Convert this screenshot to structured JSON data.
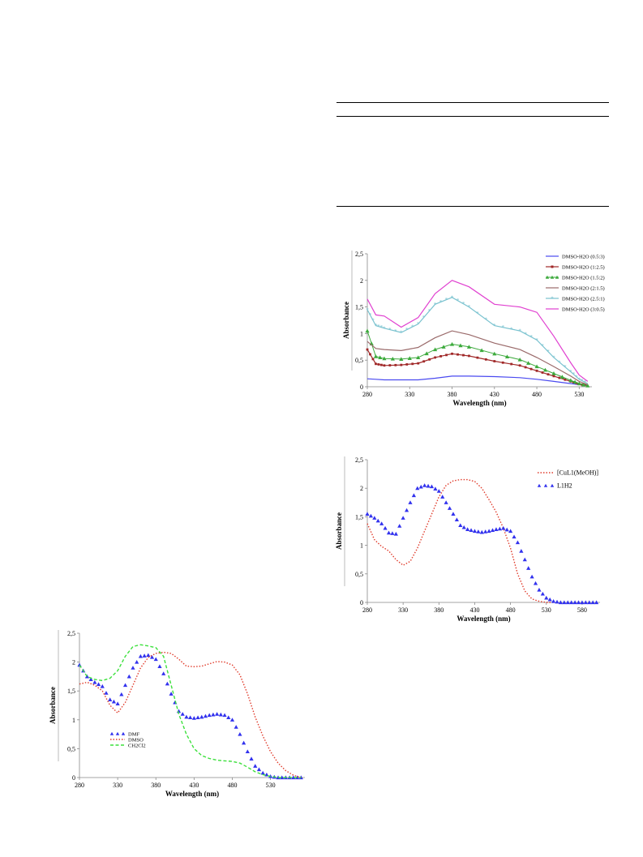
{
  "charts": {
    "top": {
      "type": "line",
      "xlabel": "Wavelength (nm)",
      "ylabel": "Absorbance",
      "x_ticks": [
        "280",
        "330",
        "380",
        "430",
        "480",
        "530"
      ],
      "y_ticks": [
        "0",
        "0,5",
        "1",
        "1,5",
        "2",
        "2,5"
      ],
      "xlim": [
        280,
        545
      ],
      "ylim": [
        0,
        2.5
      ],
      "legend_position": "top-right",
      "series": [
        {
          "name": "DMSO-H2O (0.5:3)",
          "color": "#4a4af0",
          "marker": "none",
          "x": [
            280,
            290,
            300,
            320,
            340,
            360,
            380,
            400,
            430,
            460,
            480,
            500,
            520,
            530,
            540
          ],
          "y": [
            0.15,
            0.14,
            0.13,
            0.13,
            0.13,
            0.16,
            0.2,
            0.2,
            0.19,
            0.17,
            0.14,
            0.1,
            0.06,
            0.04,
            0.03
          ]
        },
        {
          "name": "DMSO-H2O (1:2.5)",
          "color": "#a02828",
          "marker": "square",
          "x": [
            280,
            290,
            300,
            320,
            340,
            360,
            380,
            400,
            430,
            460,
            480,
            500,
            520,
            530,
            540
          ],
          "y": [
            0.7,
            0.43,
            0.4,
            0.41,
            0.44,
            0.55,
            0.62,
            0.58,
            0.48,
            0.4,
            0.3,
            0.2,
            0.1,
            0.05,
            0.02
          ]
        },
        {
          "name": "DMSO-H2O (1.5:2)",
          "color": "#3caa3c",
          "marker": "triangle",
          "x": [
            280,
            290,
            300,
            320,
            340,
            360,
            380,
            400,
            430,
            460,
            480,
            500,
            520,
            530,
            540
          ],
          "y": [
            1.05,
            0.57,
            0.53,
            0.52,
            0.55,
            0.7,
            0.8,
            0.75,
            0.62,
            0.51,
            0.38,
            0.25,
            0.12,
            0.06,
            0.02
          ]
        },
        {
          "name": "DMSO-H2O (2:1.5)",
          "color": "#9a6a6a",
          "marker": "line",
          "x": [
            280,
            290,
            300,
            320,
            340,
            360,
            380,
            400,
            430,
            460,
            480,
            500,
            520,
            530,
            540
          ],
          "y": [
            0.85,
            0.72,
            0.7,
            0.68,
            0.74,
            0.92,
            1.05,
            0.98,
            0.82,
            0.7,
            0.55,
            0.38,
            0.2,
            0.1,
            0.04
          ]
        },
        {
          "name": "DMSO-H2O (2.5:1)",
          "color": "#79c2cf",
          "marker": "star",
          "x": [
            280,
            290,
            300,
            320,
            340,
            360,
            380,
            400,
            430,
            460,
            480,
            500,
            520,
            530,
            540
          ],
          "y": [
            1.45,
            1.15,
            1.1,
            1.02,
            1.18,
            1.55,
            1.68,
            1.5,
            1.15,
            1.05,
            0.88,
            0.55,
            0.28,
            0.14,
            0.06
          ]
        },
        {
          "name": "DMSO-H2O (3:0.5)",
          "color": "#e040d0",
          "marker": "none",
          "x": [
            280,
            290,
            300,
            320,
            340,
            360,
            380,
            400,
            430,
            460,
            480,
            500,
            520,
            530,
            540
          ],
          "y": [
            1.65,
            1.35,
            1.33,
            1.12,
            1.3,
            1.75,
            2.0,
            1.88,
            1.55,
            1.5,
            1.4,
            0.95,
            0.45,
            0.22,
            0.1
          ]
        }
      ]
    },
    "middle": {
      "type": "line",
      "xlabel": "Wavelength  (nm)",
      "ylabel": "Absorbance",
      "x_ticks": [
        "280",
        "330",
        "380",
        "430",
        "480",
        "530",
        "580"
      ],
      "y_ticks": [
        "0",
        "0,5",
        "1",
        "1,5",
        "2",
        "2,5"
      ],
      "xlim": [
        280,
        605
      ],
      "ylim": [
        0,
        2.5
      ],
      "legend_position": "top-right",
      "series": [
        {
          "name": "[CuL1(MeOH)]",
          "color": "#e03c2c",
          "marker": "dotted",
          "x": [
            280,
            290,
            300,
            310,
            320,
            330,
            340,
            350,
            360,
            370,
            380,
            390,
            400,
            410,
            420,
            430,
            440,
            450,
            460,
            470,
            480,
            490,
            500,
            510,
            520,
            530,
            540
          ],
          "y": [
            1.38,
            1.1,
            0.98,
            0.9,
            0.75,
            0.65,
            0.72,
            0.95,
            1.25,
            1.55,
            1.85,
            2.05,
            2.13,
            2.15,
            2.15,
            2.12,
            2.0,
            1.8,
            1.58,
            1.3,
            0.95,
            0.5,
            0.2,
            0.06,
            0.02,
            0.0,
            0.0
          ]
        },
        {
          "name": "L1H2",
          "color": "#3232ee",
          "marker": "triangle",
          "x": [
            280,
            290,
            300,
            310,
            320,
            330,
            340,
            350,
            360,
            370,
            380,
            390,
            400,
            410,
            420,
            430,
            440,
            450,
            460,
            470,
            480,
            490,
            500,
            510,
            520,
            530,
            540,
            550,
            560,
            570,
            580,
            590,
            600
          ],
          "y": [
            1.55,
            1.48,
            1.38,
            1.22,
            1.2,
            1.48,
            1.75,
            2.0,
            2.05,
            2.03,
            1.95,
            1.75,
            1.55,
            1.35,
            1.28,
            1.25,
            1.23,
            1.25,
            1.28,
            1.3,
            1.25,
            1.05,
            0.75,
            0.45,
            0.22,
            0.08,
            0.02,
            0.0,
            0.0,
            0.0,
            0.0,
            0.0,
            0.0
          ]
        }
      ]
    },
    "bottom": {
      "type": "line",
      "xlabel": "Wavelength (nm)",
      "ylabel": "Absorbance",
      "x_ticks": [
        "280",
        "330",
        "380",
        "430",
        "480",
        "530"
      ],
      "y_ticks": [
        "0",
        "0,5",
        "1",
        "1,5",
        "2",
        "2,5"
      ],
      "xlim": [
        280,
        575
      ],
      "ylim": [
        0,
        2.5
      ],
      "legend_position": "bottom-left",
      "series": [
        {
          "name": "DMF",
          "color": "#3232ee",
          "marker": "triangle",
          "x": [
            280,
            290,
            300,
            310,
            320,
            330,
            340,
            350,
            360,
            370,
            380,
            390,
            400,
            410,
            420,
            430,
            440,
            450,
            460,
            470,
            480,
            490,
            500,
            510,
            520,
            530,
            540,
            550,
            560,
            570
          ],
          "y": [
            1.95,
            1.75,
            1.65,
            1.58,
            1.35,
            1.28,
            1.6,
            1.9,
            2.1,
            2.12,
            2.05,
            1.8,
            1.45,
            1.15,
            1.05,
            1.03,
            1.05,
            1.08,
            1.1,
            1.08,
            1.0,
            0.75,
            0.45,
            0.2,
            0.08,
            0.02,
            0.0,
            0.0,
            0.0,
            0.0
          ]
        },
        {
          "name": "DMSO",
          "color": "#e03c2c",
          "marker": "dotted",
          "x": [
            280,
            290,
            300,
            310,
            320,
            330,
            340,
            350,
            360,
            370,
            380,
            390,
            400,
            410,
            420,
            430,
            440,
            450,
            460,
            470,
            480,
            490,
            500,
            510,
            520,
            530,
            540,
            550,
            560,
            570
          ],
          "y": [
            1.62,
            1.65,
            1.6,
            1.5,
            1.25,
            1.12,
            1.3,
            1.6,
            1.9,
            2.08,
            2.15,
            2.17,
            2.15,
            2.05,
            1.93,
            1.92,
            1.93,
            1.97,
            2.01,
            2.0,
            1.95,
            1.78,
            1.45,
            1.05,
            0.72,
            0.45,
            0.25,
            0.12,
            0.04,
            0.0
          ]
        },
        {
          "name": "CH2Cl2",
          "color": "#3ce03c",
          "marker": "dashed",
          "x": [
            280,
            290,
            300,
            310,
            320,
            330,
            340,
            350,
            360,
            370,
            380,
            390,
            400,
            410,
            420,
            430,
            440,
            450,
            460,
            470,
            480,
            490,
            500,
            510,
            520,
            530,
            540,
            550,
            560,
            570
          ],
          "y": [
            1.95,
            1.75,
            1.7,
            1.68,
            1.72,
            1.85,
            2.1,
            2.27,
            2.3,
            2.28,
            2.25,
            2.1,
            1.6,
            1.1,
            0.75,
            0.5,
            0.38,
            0.33,
            0.3,
            0.29,
            0.28,
            0.25,
            0.18,
            0.1,
            0.05,
            0.02,
            0.0,
            0.0,
            0.0,
            0.0
          ]
        }
      ]
    }
  },
  "legend_labels": {
    "bottom_display": [
      "DMF",
      "DMSO",
      "CH2Cl2"
    ]
  }
}
